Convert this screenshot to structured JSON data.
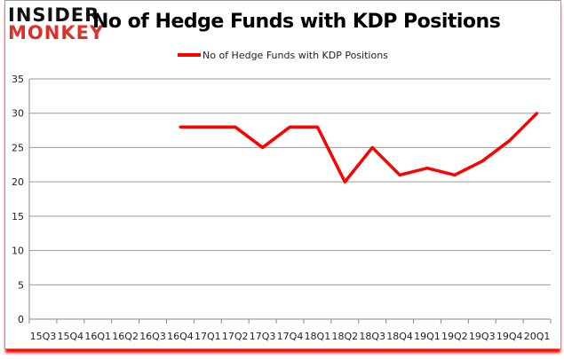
{
  "logo": {
    "line1": "INSIDER",
    "line2": "MONKEY"
  },
  "chart_data": {
    "type": "line",
    "title": "No of Hedge Funds with KDP Positions",
    "categories": [
      "15Q3",
      "15Q4",
      "16Q1",
      "16Q2",
      "16Q3",
      "16Q4",
      "17Q1",
      "17Q2",
      "17Q3",
      "17Q4",
      "18Q1",
      "18Q2",
      "18Q3",
      "18Q4",
      "19Q1",
      "19Q2",
      "19Q3",
      "19Q4",
      "20Q1"
    ],
    "series": [
      {
        "name": "No of Hedge Funds with KDP Positions",
        "color": "#ff0000",
        "values": [
          null,
          null,
          null,
          null,
          null,
          28,
          28,
          28,
          25,
          28,
          28,
          20,
          25,
          21,
          22,
          21,
          23,
          26,
          30
        ]
      }
    ],
    "ylim": [
      0,
      35
    ],
    "yticks": [
      0,
      5,
      10,
      15,
      20,
      25,
      30,
      35
    ],
    "grid": true,
    "legend": "top"
  }
}
